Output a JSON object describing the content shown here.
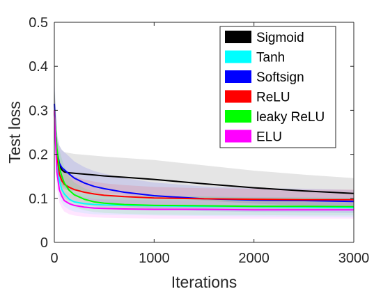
{
  "chart_data": {
    "type": "line",
    "title": "",
    "xlabel": "Iterations",
    "ylabel": "Test loss",
    "xlim": [
      0,
      3000
    ],
    "ylim": [
      0,
      0.5
    ],
    "xticks": [
      0,
      1000,
      2000,
      3000
    ],
    "xtick_labels": [
      "0",
      "1000",
      "2000",
      "3000"
    ],
    "yticks": [
      0,
      0.1,
      0.2,
      0.3,
      0.4,
      0.5
    ],
    "ytick_labels": [
      "0",
      "0.1",
      "0.2",
      "0.3",
      "0.4",
      "0.5"
    ],
    "grid": false,
    "legend_position": "top-right",
    "shaded_band": "mean ± spread shaded per series",
    "x": [
      0,
      25,
      50,
      75,
      100,
      150,
      200,
      300,
      400,
      500,
      700,
      1000,
      1500,
      2000,
      2500,
      3000
    ],
    "series": [
      {
        "name": "Sigmoid",
        "color": "#000000",
        "values": [
          0.3,
          0.2,
          0.175,
          0.165,
          0.16,
          0.158,
          0.157,
          0.155,
          0.153,
          0.151,
          0.148,
          0.143,
          0.133,
          0.124,
          0.117,
          0.111
        ],
        "band_lower": [
          0.24,
          0.16,
          0.135,
          0.125,
          0.12,
          0.118,
          0.117,
          0.115,
          0.113,
          0.111,
          0.108,
          0.103,
          0.095,
          0.088,
          0.084,
          0.08
        ],
        "band_upper": [
          0.36,
          0.24,
          0.22,
          0.21,
          0.205,
          0.203,
          0.201,
          0.199,
          0.197,
          0.195,
          0.192,
          0.187,
          0.175,
          0.163,
          0.154,
          0.146
        ]
      },
      {
        "name": "Tanh",
        "color": "#00ffff",
        "values": [
          0.3,
          0.18,
          0.14,
          0.12,
          0.11,
          0.098,
          0.092,
          0.088,
          0.086,
          0.085,
          0.084,
          0.083,
          0.082,
          0.081,
          0.08,
          0.079
        ],
        "band_lower": [
          0.24,
          0.14,
          0.105,
          0.09,
          0.082,
          0.074,
          0.07,
          0.066,
          0.064,
          0.063,
          0.062,
          0.061,
          0.06,
          0.059,
          0.058,
          0.057
        ],
        "band_upper": [
          0.36,
          0.22,
          0.175,
          0.15,
          0.138,
          0.122,
          0.114,
          0.11,
          0.108,
          0.107,
          0.106,
          0.105,
          0.104,
          0.103,
          0.102,
          0.101
        ]
      },
      {
        "name": "Softsign",
        "color": "#0000ff",
        "values": [
          0.315,
          0.21,
          0.18,
          0.17,
          0.165,
          0.155,
          0.146,
          0.135,
          0.127,
          0.122,
          0.114,
          0.106,
          0.099,
          0.096,
          0.095,
          0.093
        ],
        "band_lower": [
          0.25,
          0.17,
          0.14,
          0.13,
          0.125,
          0.115,
          0.108,
          0.099,
          0.092,
          0.088,
          0.082,
          0.076,
          0.071,
          0.069,
          0.068,
          0.067
        ],
        "band_upper": [
          0.38,
          0.25,
          0.22,
          0.21,
          0.205,
          0.195,
          0.184,
          0.171,
          0.162,
          0.156,
          0.146,
          0.136,
          0.127,
          0.123,
          0.122,
          0.119
        ]
      },
      {
        "name": "ReLU",
        "color": "#ff0000",
        "values": [
          0.3,
          0.2,
          0.155,
          0.14,
          0.132,
          0.125,
          0.12,
          0.114,
          0.11,
          0.107,
          0.104,
          0.101,
          0.099,
          0.098,
          0.097,
          0.097
        ],
        "band_lower": [
          0.24,
          0.16,
          0.12,
          0.107,
          0.1,
          0.094,
          0.09,
          0.085,
          0.082,
          0.08,
          0.078,
          0.076,
          0.075,
          0.074,
          0.074,
          0.074
        ],
        "band_upper": [
          0.36,
          0.24,
          0.19,
          0.173,
          0.164,
          0.156,
          0.15,
          0.143,
          0.138,
          0.134,
          0.13,
          0.126,
          0.123,
          0.122,
          0.12,
          0.12
        ]
      },
      {
        "name": "leaky ReLU",
        "color": "#00ff00",
        "values": [
          0.3,
          0.215,
          0.17,
          0.15,
          0.135,
          0.118,
          0.108,
          0.098,
          0.092,
          0.089,
          0.086,
          0.084,
          0.083,
          0.082,
          0.082,
          0.081
        ],
        "band_lower": [
          0.24,
          0.175,
          0.13,
          0.11,
          0.098,
          0.087,
          0.08,
          0.073,
          0.069,
          0.067,
          0.065,
          0.063,
          0.062,
          0.062,
          0.061,
          0.061
        ],
        "band_upper": [
          0.36,
          0.255,
          0.21,
          0.19,
          0.172,
          0.149,
          0.136,
          0.123,
          0.115,
          0.111,
          0.107,
          0.105,
          0.104,
          0.102,
          0.102,
          0.101
        ]
      },
      {
        "name": "ELU",
        "color": "#ff00ff",
        "values": [
          0.3,
          0.16,
          0.12,
          0.105,
          0.095,
          0.088,
          0.084,
          0.08,
          0.078,
          0.077,
          0.076,
          0.075,
          0.075,
          0.074,
          0.074,
          0.074
        ],
        "band_lower": [
          0.24,
          0.125,
          0.09,
          0.078,
          0.07,
          0.064,
          0.061,
          0.058,
          0.057,
          0.056,
          0.055,
          0.054,
          0.054,
          0.054,
          0.054,
          0.054
        ],
        "band_upper": [
          0.36,
          0.195,
          0.15,
          0.132,
          0.12,
          0.112,
          0.107,
          0.102,
          0.099,
          0.098,
          0.097,
          0.096,
          0.096,
          0.094,
          0.094,
          0.094
        ]
      }
    ]
  }
}
